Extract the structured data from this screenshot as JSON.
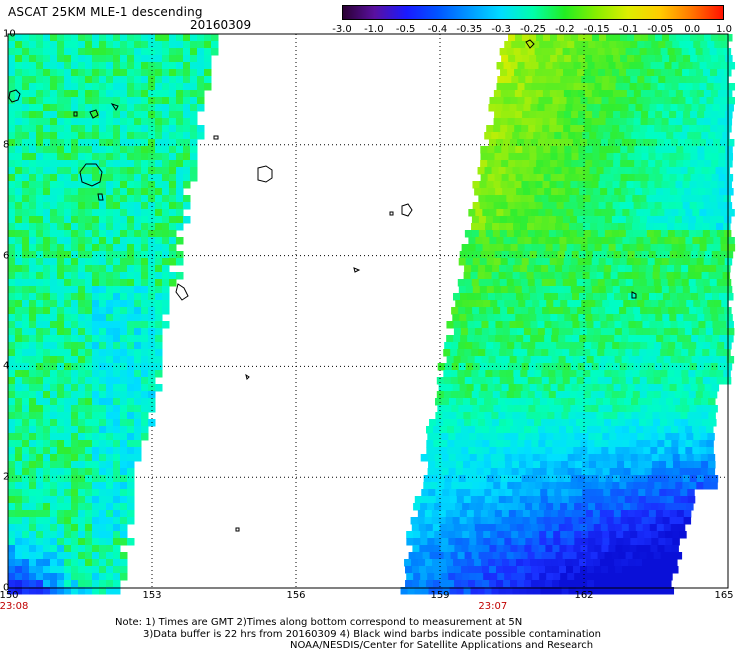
{
  "header": {
    "title": "ASCAT 25KM MLE-1 descending",
    "date": "20160309"
  },
  "colorbar": {
    "ticks": [
      "-3.0",
      "-1.0",
      "-0.5",
      "-0.4",
      "-0.35",
      "-0.3",
      "-0.25",
      "-0.2",
      "-0.15",
      "-0.1",
      "-0.05",
      "0.0",
      "1.0"
    ],
    "colors": [
      "#2a0033",
      "#5a10a0",
      "#1a1aff",
      "#0055ff",
      "#0099ff",
      "#00ddff",
      "#00ffaa",
      "#22ee22",
      "#88ee00",
      "#ddee00",
      "#ffcc00",
      "#ff7700",
      "#ff1100"
    ]
  },
  "axes": {
    "x_ticks": [
      "150",
      "153",
      "156",
      "159",
      "162",
      "165"
    ],
    "y_ticks": [
      "0",
      "2",
      "4",
      "6",
      "8",
      "10"
    ],
    "x_range": [
      150,
      165
    ],
    "y_range": [
      0,
      10
    ]
  },
  "swaths": [
    {
      "time": "23:08",
      "time_lon": 150.1
    },
    {
      "time": "23:07",
      "time_lon": 160.1
    }
  ],
  "notes": {
    "line1": "Note: 1) Times are GMT 2)Times along bottom correspond to measurement at 5N",
    "line2": "3)Data buffer is 22 hrs from 20160309 4) Black wind barbs indicate possible contamination",
    "line3": "NOAA/NESDIS/Center for Satellite Applications and Research"
  }
}
